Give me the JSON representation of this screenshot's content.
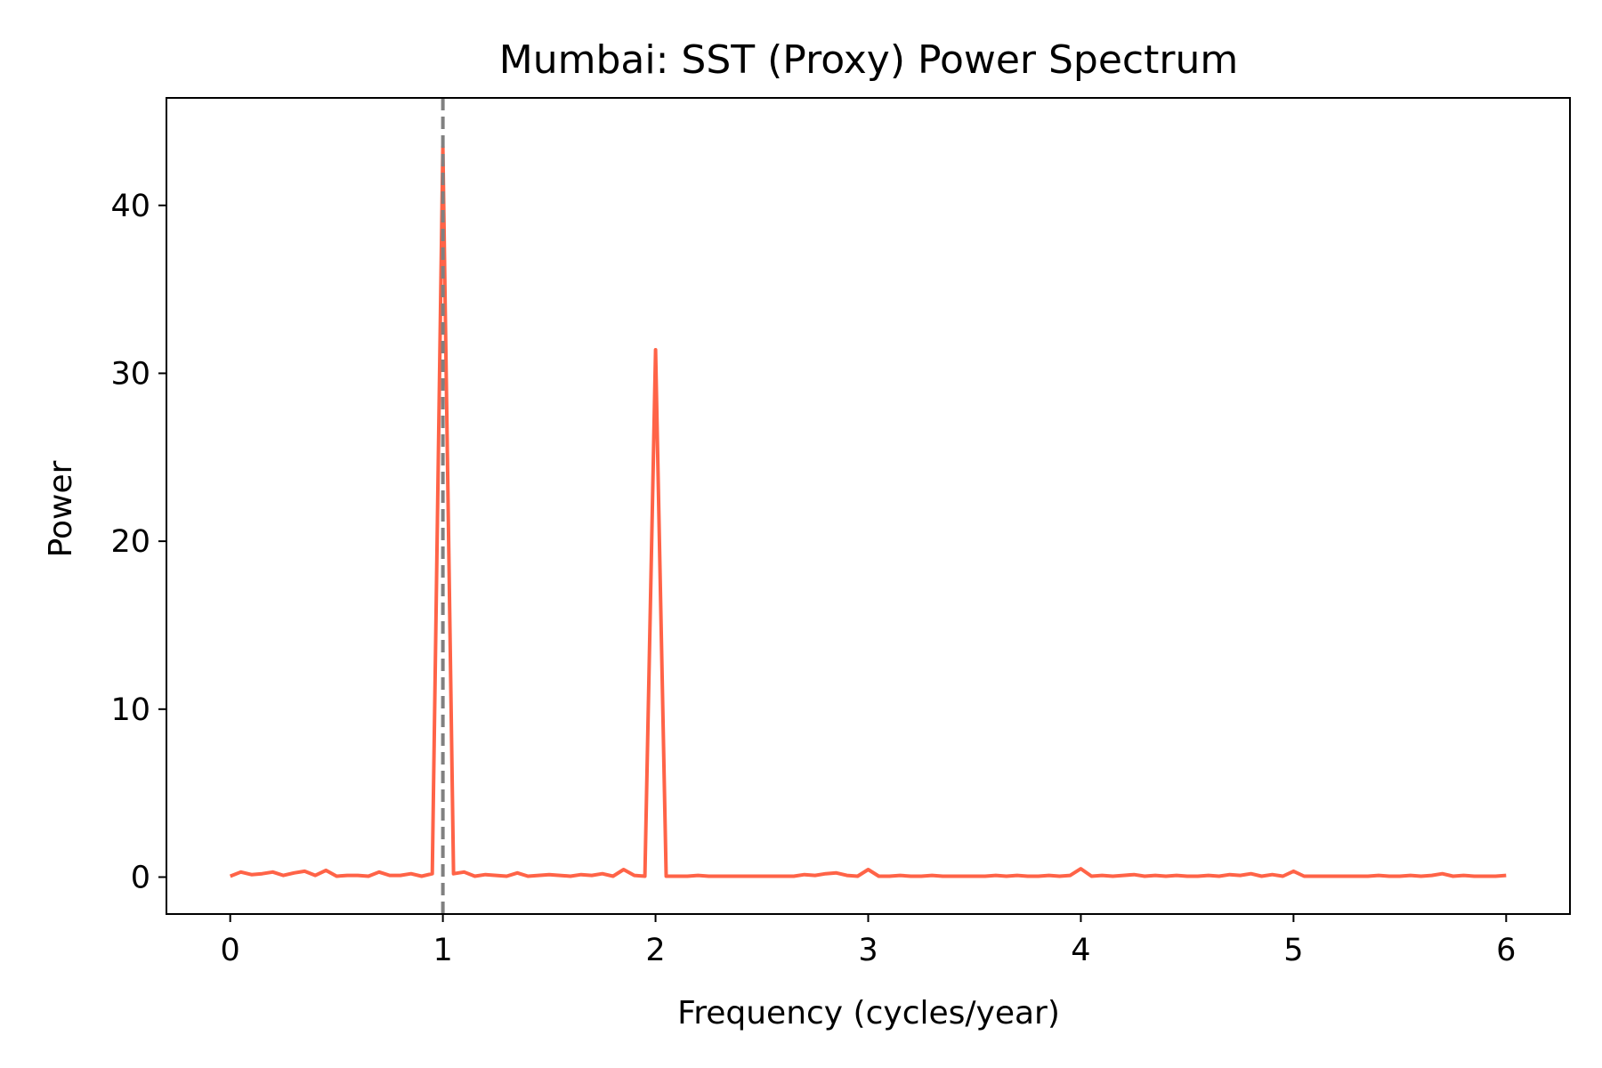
{
  "chart_data": {
    "type": "line",
    "title": "Mumbai: SST (Proxy) Power Spectrum",
    "xlabel": "Frequency (cycles/year)",
    "ylabel": "Power",
    "xlim": [
      -0.3,
      6.3
    ],
    "ylim": [
      -2.2,
      46.4
    ],
    "xticks": [
      0,
      1,
      2,
      3,
      4,
      5,
      6
    ],
    "yticks": [
      0,
      10,
      20,
      30,
      40
    ],
    "grid": false,
    "legend": "none",
    "line_color": "#ff6347",
    "reference_line": {
      "x": 1.0,
      "color": "#808080",
      "style": "dashed"
    },
    "series": [
      {
        "x": [
          0.0,
          0.05,
          0.1,
          0.15,
          0.2,
          0.25,
          0.3,
          0.35,
          0.4,
          0.45,
          0.5,
          0.55,
          0.6,
          0.65,
          0.7,
          0.75,
          0.8,
          0.85,
          0.9,
          0.95,
          1.0,
          1.05,
          1.1,
          1.15,
          1.2,
          1.25,
          1.3,
          1.35,
          1.4,
          1.45,
          1.5,
          1.55,
          1.6,
          1.65,
          1.7,
          1.75,
          1.8,
          1.85,
          1.9,
          1.95,
          2.0,
          2.05,
          2.1,
          2.15,
          2.2,
          2.25,
          2.3,
          2.35,
          2.4,
          2.45,
          2.5,
          2.55,
          2.6,
          2.65,
          2.7,
          2.75,
          2.8,
          2.85,
          2.9,
          2.95,
          3.0,
          3.05,
          3.1,
          3.15,
          3.2,
          3.25,
          3.3,
          3.35,
          3.4,
          3.45,
          3.5,
          3.55,
          3.6,
          3.65,
          3.7,
          3.75,
          3.8,
          3.85,
          3.9,
          3.95,
          4.0,
          4.05,
          4.1,
          4.15,
          4.2,
          4.25,
          4.3,
          4.35,
          4.4,
          4.45,
          4.5,
          4.55,
          4.6,
          4.65,
          4.7,
          4.75,
          4.8,
          4.85,
          4.9,
          4.95,
          5.0,
          5.05,
          5.1,
          5.15,
          5.2,
          5.25,
          5.3,
          5.35,
          5.4,
          5.45,
          5.5,
          5.55,
          5.6,
          5.65,
          5.7,
          5.75,
          5.8,
          5.85,
          5.9,
          5.95,
          6.0
        ],
        "values": [
          0.05,
          0.3,
          0.15,
          0.2,
          0.3,
          0.1,
          0.25,
          0.35,
          0.1,
          0.4,
          0.05,
          0.1,
          0.1,
          0.05,
          0.3,
          0.1,
          0.1,
          0.2,
          0.05,
          0.2,
          43.5,
          0.2,
          0.3,
          0.05,
          0.15,
          0.1,
          0.05,
          0.25,
          0.05,
          0.1,
          0.15,
          0.1,
          0.05,
          0.15,
          0.1,
          0.2,
          0.05,
          0.45,
          0.1,
          0.05,
          31.4,
          0.05,
          0.05,
          0.05,
          0.1,
          0.05,
          0.05,
          0.05,
          0.05,
          0.05,
          0.05,
          0.05,
          0.05,
          0.05,
          0.15,
          0.1,
          0.2,
          0.25,
          0.1,
          0.05,
          0.45,
          0.05,
          0.05,
          0.1,
          0.05,
          0.05,
          0.1,
          0.05,
          0.05,
          0.05,
          0.05,
          0.05,
          0.1,
          0.05,
          0.1,
          0.05,
          0.05,
          0.1,
          0.05,
          0.1,
          0.5,
          0.05,
          0.1,
          0.05,
          0.1,
          0.15,
          0.05,
          0.1,
          0.05,
          0.1,
          0.05,
          0.05,
          0.1,
          0.05,
          0.15,
          0.1,
          0.2,
          0.05,
          0.15,
          0.05,
          0.35,
          0.05,
          0.05,
          0.05,
          0.05,
          0.05,
          0.05,
          0.05,
          0.1,
          0.05,
          0.05,
          0.1,
          0.05,
          0.1,
          0.2,
          0.05,
          0.1,
          0.05,
          0.05,
          0.05,
          0.1
        ]
      }
    ]
  }
}
